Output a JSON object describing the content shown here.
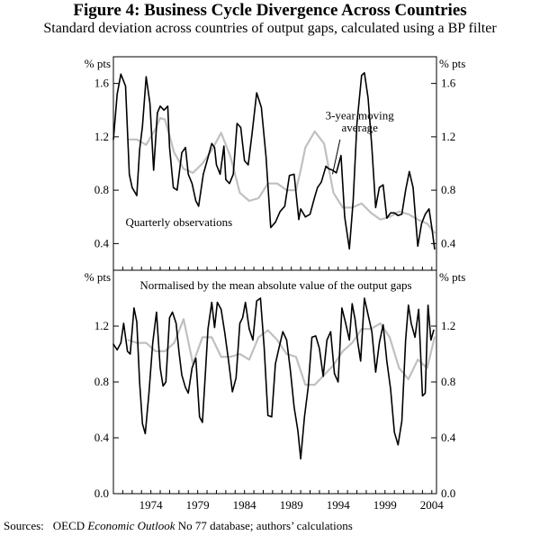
{
  "figure": {
    "title": "Figure 4: Business Cycle Divergence Across Countries",
    "subtitle": "Standard deviation across countries of output gaps, calculated using a BP filter",
    "sources_label": "Sources:",
    "sources_prefix": "OECD ",
    "sources_italic": "Economic Outlook",
    "sources_suffix": " No 77 database; authors’ calculations"
  },
  "colors": {
    "quarterly": "#000000",
    "moving_average": "#c0c0c0",
    "frame": "#000000"
  },
  "chart_data": [
    {
      "type": "line",
      "title": "",
      "ylabel_left": "% pts",
      "ylabel_right": "% pts",
      "ylim": [
        0.2,
        1.8
      ],
      "yticks": [
        0.4,
        0.8,
        1.2,
        1.6
      ],
      "ytick_labels": [
        "0.4",
        "0.8",
        "1.2",
        "1.6"
      ],
      "xlim": [
        1970.0,
        2004.5
      ],
      "xticks": [
        1970,
        1971,
        1972,
        1973,
        1974,
        1975,
        1976,
        1977,
        1978,
        1979,
        1980,
        1981,
        1982,
        1983,
        1984,
        1985,
        1986,
        1987,
        1988,
        1989,
        1990,
        1991,
        1992,
        1993,
        1994,
        1995,
        1996,
        1997,
        1998,
        1999,
        2000,
        2001,
        2002,
        2003,
        2004
      ],
      "annotations": [
        {
          "text": "3-year moving",
          "x": 1996.3,
          "y": 1.33
        },
        {
          "text": "average",
          "x": 1996.3,
          "y": 1.24
        },
        {
          "text": "Quarterly observations",
          "x": 1977.0,
          "y": 0.53
        }
      ],
      "annotation_arrow": {
        "from": [
          1994.2,
          1.18
        ],
        "to": [
          1993.4,
          0.92
        ]
      },
      "series": [
        {
          "name": "Quarterly observations",
          "x": [
            1970.0,
            1970.4,
            1970.8,
            1971.3,
            1971.7,
            1972.0,
            1972.5,
            1972.8,
            1973.1,
            1973.5,
            1973.9,
            1974.3,
            1974.7,
            1975.0,
            1975.4,
            1975.8,
            1976.0,
            1976.4,
            1976.8,
            1977.3,
            1977.7,
            1978.0,
            1978.4,
            1978.8,
            1979.1,
            1979.6,
            1980.0,
            1980.5,
            1980.8,
            1981.0,
            1981.4,
            1981.8,
            1982.0,
            1982.4,
            1982.8,
            1983.2,
            1983.6,
            1984.0,
            1984.4,
            1984.8,
            1985.3,
            1985.8,
            1986.3,
            1986.8,
            1987.3,
            1987.8,
            1988.3,
            1988.8,
            1989.3,
            1989.8,
            1990.0,
            1990.5,
            1991.0,
            1991.5,
            1991.8,
            1992.2,
            1992.7,
            1993.0,
            1993.4,
            1993.8,
            1994.3,
            1994.7,
            1995.2,
            1995.6,
            1996.0,
            1996.5,
            1996.8,
            1997.2,
            1997.6,
            1998.0,
            1998.4,
            1998.8,
            1999.2,
            1999.6,
            2000.0,
            2000.4,
            2000.8,
            2001.2,
            2001.6,
            2002.0,
            2002.5,
            2002.9,
            2003.3,
            2003.7,
            2004.0,
            2004.3
          ],
          "values": [
            1.18,
            1.52,
            1.67,
            1.58,
            0.92,
            0.82,
            0.76,
            1.1,
            1.28,
            1.65,
            1.45,
            0.95,
            1.38,
            1.43,
            1.4,
            1.43,
            1.12,
            0.82,
            0.8,
            1.08,
            1.12,
            0.92,
            0.85,
            0.72,
            0.68,
            0.92,
            1.02,
            1.15,
            1.12,
            0.99,
            0.92,
            1.13,
            0.88,
            0.85,
            0.92,
            1.3,
            1.27,
            1.02,
            0.99,
            1.22,
            1.53,
            1.42,
            1.05,
            0.52,
            0.56,
            0.64,
            0.68,
            0.91,
            0.92,
            0.58,
            0.66,
            0.6,
            0.62,
            0.75,
            0.82,
            0.86,
            0.98,
            0.96,
            0.95,
            0.93,
            1.06,
            0.6,
            0.36,
            0.72,
            1.3,
            1.66,
            1.68,
            1.49,
            1.12,
            0.67,
            0.82,
            0.84,
            0.59,
            0.63,
            0.63,
            0.61,
            0.62,
            0.8,
            0.94,
            0.82,
            0.38,
            0.55,
            0.62,
            0.66,
            0.52,
            0.36
          ]
        },
        {
          "name": "3-year moving average",
          "x": [
            1971.6,
            1972.5,
            1973.5,
            1974.5,
            1975.0,
            1975.5,
            1976.5,
            1977.5,
            1978.5,
            1979.5,
            1980.5,
            1981.5,
            1982.5,
            1983.5,
            1984.5,
            1985.5,
            1986.5,
            1987.5,
            1988.5,
            1989.5,
            1990.0,
            1990.5,
            1991.5,
            1992.5,
            1993.5,
            1994.5,
            1995.5,
            1996.5,
            1997.5,
            1998.5,
            1999.5,
            2000.5,
            2001.5,
            2002.5,
            2003.5,
            2004.3
          ],
          "values": [
            1.18,
            1.18,
            1.14,
            1.26,
            1.34,
            1.33,
            1.08,
            0.96,
            0.93,
            1.0,
            1.1,
            1.23,
            1.05,
            0.78,
            0.72,
            0.74,
            0.85,
            0.85,
            0.8,
            0.8,
            0.95,
            1.12,
            1.24,
            1.15,
            0.78,
            0.67,
            0.67,
            0.7,
            0.63,
            0.58,
            0.6,
            0.64,
            0.62,
            0.58,
            0.55,
            0.48
          ]
        }
      ]
    },
    {
      "type": "line",
      "title": "Normalised by the mean absolute value of the output gaps",
      "ylabel_left": "% pts",
      "ylabel_right": "% pts",
      "ylim": [
        0.0,
        1.6
      ],
      "yticks": [
        0.0,
        0.4,
        0.8,
        1.2
      ],
      "ytick_labels": [
        "0.0",
        "0.4",
        "0.8",
        "1.2"
      ],
      "xlim": [
        1970.0,
        2004.5
      ],
      "xticks": [
        1970,
        1971,
        1972,
        1973,
        1974,
        1975,
        1976,
        1977,
        1978,
        1979,
        1980,
        1981,
        1982,
        1983,
        1984,
        1985,
        1986,
        1987,
        1988,
        1989,
        1990,
        1991,
        1992,
        1993,
        1994,
        1995,
        1996,
        1997,
        1998,
        1999,
        2000,
        2001,
        2002,
        2003,
        2004
      ],
      "xtick_labels": [
        {
          "value": 1974,
          "label": "1974"
        },
        {
          "value": 1979,
          "label": "1979"
        },
        {
          "value": 1984,
          "label": "1984"
        },
        {
          "value": 1989,
          "label": "1989"
        },
        {
          "value": 1994,
          "label": "1994"
        },
        {
          "value": 1999,
          "label": "1999"
        },
        {
          "value": 2004,
          "label": "2004"
        }
      ],
      "series": [
        {
          "name": "Quarterly observations",
          "x": [
            1970.0,
            1970.4,
            1970.8,
            1971.1,
            1971.5,
            1971.8,
            1972.2,
            1972.5,
            1972.8,
            1973.1,
            1973.4,
            1973.8,
            1974.2,
            1974.6,
            1975.0,
            1975.3,
            1975.6,
            1976.0,
            1976.3,
            1976.7,
            1977.0,
            1977.3,
            1977.7,
            1978.0,
            1978.4,
            1978.8,
            1979.2,
            1979.5,
            1979.8,
            1980.1,
            1980.5,
            1980.8,
            1981.1,
            1981.5,
            1981.9,
            1982.3,
            1982.7,
            1983.1,
            1983.5,
            1983.8,
            1984.1,
            1984.5,
            1984.9,
            1985.3,
            1985.7,
            1986.1,
            1986.5,
            1986.9,
            1987.3,
            1987.7,
            1988.1,
            1988.5,
            1988.9,
            1989.3,
            1989.7,
            1990.0,
            1990.4,
            1990.8,
            1991.2,
            1991.6,
            1992.0,
            1992.4,
            1992.8,
            1993.2,
            1993.6,
            1994.0,
            1994.4,
            1994.8,
            1995.2,
            1995.5,
            1995.8,
            1996.1,
            1996.4,
            1996.8,
            1997.2,
            1997.6,
            1998.0,
            1998.4,
            1998.8,
            1999.2,
            1999.6,
            2000.0,
            2000.4,
            2000.8,
            2001.2,
            2001.5,
            2001.8,
            2002.2,
            2002.6,
            2003.0,
            2003.3,
            2003.6,
            2003.9,
            2004.2
          ],
          "values": [
            1.07,
            1.03,
            1.08,
            1.22,
            1.02,
            1.0,
            1.33,
            1.23,
            0.8,
            0.5,
            0.43,
            0.72,
            1.08,
            1.3,
            0.9,
            0.77,
            0.8,
            1.26,
            1.3,
            1.22,
            1.02,
            0.85,
            0.76,
            0.72,
            0.9,
            0.97,
            0.55,
            0.51,
            0.84,
            1.18,
            1.37,
            1.19,
            1.37,
            1.32,
            1.15,
            0.95,
            0.73,
            0.83,
            1.22,
            1.26,
            1.37,
            1.18,
            1.1,
            1.38,
            1.4,
            1.05,
            0.56,
            0.55,
            0.93,
            1.05,
            1.16,
            1.1,
            0.88,
            0.62,
            0.45,
            0.25,
            0.55,
            0.76,
            1.12,
            1.13,
            1.04,
            0.84,
            1.1,
            1.16,
            0.86,
            0.8,
            1.33,
            1.22,
            1.1,
            1.36,
            1.25,
            1.08,
            0.95,
            1.4,
            1.28,
            1.16,
            0.87,
            1.08,
            1.21,
            0.95,
            0.75,
            0.44,
            0.35,
            0.52,
            1.1,
            1.35,
            1.22,
            1.12,
            1.32,
            0.7,
            0.72,
            1.35,
            1.1,
            1.17
          ]
        },
        {
          "name": "3-year moving average",
          "x": [
            1971.6,
            1972.5,
            1973.5,
            1974.5,
            1975.5,
            1976.5,
            1977.5,
            1978.5,
            1979.5,
            1980.5,
            1981.5,
            1982.5,
            1983.5,
            1984.5,
            1985.5,
            1986.5,
            1987.5,
            1988.5,
            1989.5,
            1990.5,
            1991.5,
            1992.5,
            1993.5,
            1994.5,
            1995.5,
            1996.5,
            1997.5,
            1998.5,
            1999.5,
            2000.5,
            2001.5,
            2002.5,
            2003.5,
            2004.3
          ],
          "values": [
            1.1,
            1.08,
            1.08,
            1.02,
            1.02,
            1.08,
            1.25,
            0.93,
            1.12,
            1.12,
            0.98,
            0.98,
            1.0,
            0.96,
            1.12,
            1.17,
            1.1,
            1.0,
            0.98,
            0.78,
            0.78,
            0.85,
            0.92,
            1.02,
            1.08,
            1.18,
            1.18,
            1.22,
            1.12,
            0.9,
            0.82,
            0.96,
            0.9,
            1.12
          ]
        }
      ]
    }
  ]
}
